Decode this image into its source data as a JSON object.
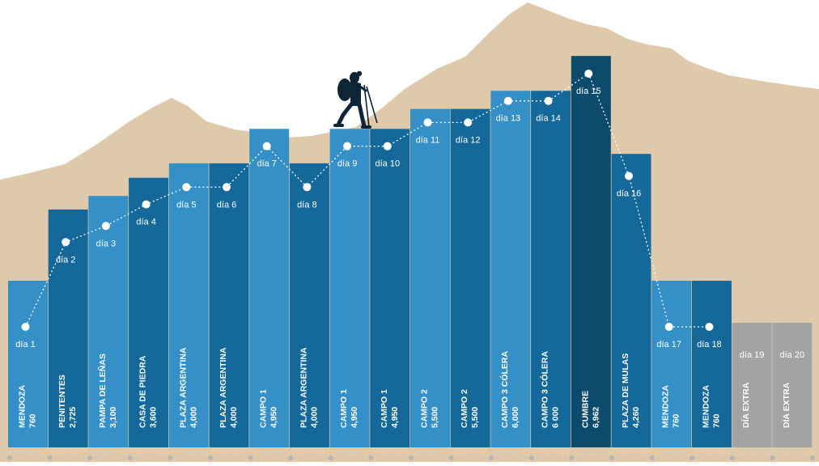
{
  "chart_data": {
    "type": "bar",
    "title": "",
    "xlabel": "",
    "ylabel": "",
    "days": [
      "día 1",
      "día 2",
      "día 3",
      "día 4",
      "día 5",
      "día 6",
      "día 7",
      "día 8",
      "día 9",
      "día 10",
      "día 11",
      "día 12",
      "día 13",
      "día 14",
      "día 15",
      "día 16",
      "día 17",
      "día 18",
      "día 19",
      "día 20"
    ],
    "locations": [
      "MENDOZA",
      "PENITENTES",
      "PAMPA DE LEÑAS",
      "CASA DE PIEDRA",
      "PLAZA ARGENTINA",
      "PLAZA ARGENTINA",
      "CAMPO 1",
      "PLAZA ARGENTINA",
      "CAMPO 1",
      "CAMPO 1",
      "CAMPO 2",
      "CAMPO 2",
      "CAMPO 3  CÓLERA",
      "CAMPO 3  CÓLERA",
      "CUMBRE",
      "PLAZA DE MULAS",
      "MENDOZA",
      "MENDOZA",
      "DÍA EXTRA",
      "DÍA EXTRA"
    ],
    "altitude_labels": [
      "760",
      "2,725",
      "3,100",
      "3,600",
      "4,000",
      "4,000",
      "4,950",
      "4,000",
      "4,950",
      "4,950",
      "5,500",
      "5,500",
      "6,000",
      "6 000",
      "6,962",
      "4,260",
      "760",
      "760",
      "",
      ""
    ],
    "values": [
      760,
      2725,
      3100,
      3600,
      4000,
      4000,
      4950,
      4000,
      4950,
      4950,
      5500,
      5500,
      6000,
      6000,
      6962,
      4260,
      760,
      760,
      null,
      null
    ],
    "colors": {
      "bar_light": "#3590c8",
      "bar_dark": "#14699a",
      "bar_summit": "#0c4b6b",
      "bar_extra": "#a3a3a3",
      "mountain": "#dfc9ab",
      "marker": "#ffffff"
    }
  }
}
